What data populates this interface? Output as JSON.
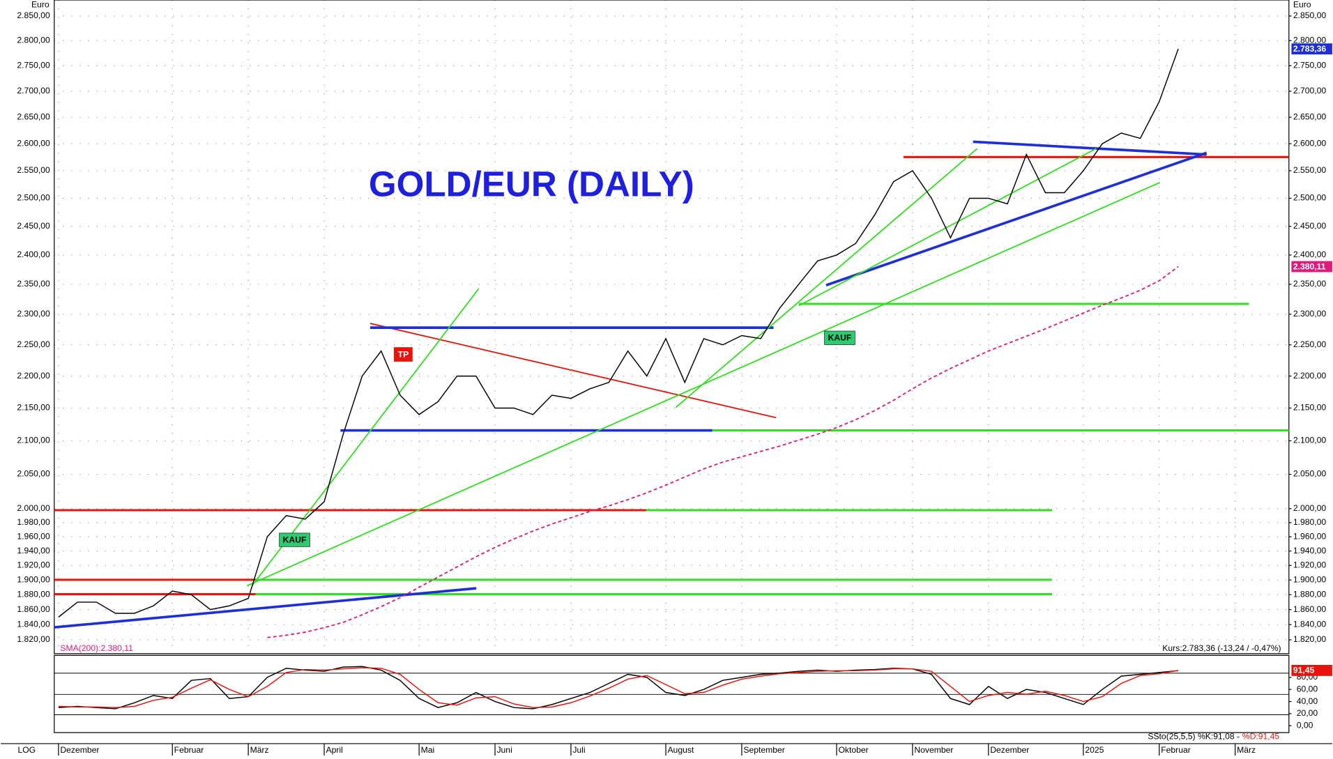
{
  "chart_data": {
    "type": "line",
    "title": "GOLD/EUR (DAILY)",
    "y_label": "Euro",
    "scale_label": "LOG",
    "log_scale": true,
    "grid": true,
    "annotations": [
      "KAUF",
      "TP",
      "KAUF"
    ],
    "categories": [
      "Dezember",
      null,
      null,
      null,
      null,
      null,
      "Februar",
      null,
      null,
      null,
      "März",
      null,
      null,
      null,
      "April",
      null,
      null,
      null,
      null,
      "Mai",
      null,
      null,
      null,
      "Juni",
      null,
      null,
      null,
      "Juli",
      null,
      null,
      null,
      null,
      "August",
      null,
      null,
      null,
      "September",
      null,
      null,
      null,
      null,
      "Oktober",
      null,
      null,
      null,
      "November",
      null,
      null,
      null,
      "Dezember",
      null,
      null,
      null,
      null,
      "2025",
      null,
      null,
      null,
      "Februar",
      null,
      null,
      null,
      "März",
      null,
      null,
      null
    ],
    "ylim": [
      1802,
      2883
    ],
    "yticks": [
      {
        "value": 2850,
        "label": "2.850,00"
      },
      {
        "value": 2800,
        "label": "2.800,00"
      },
      {
        "value": 2750,
        "label": "2.750,00"
      },
      {
        "value": 2700,
        "label": "2.700,00"
      },
      {
        "value": 2650,
        "label": "2.650,00"
      },
      {
        "value": 2600,
        "label": "2.600,00"
      },
      {
        "value": 2550,
        "label": "2.550,00"
      },
      {
        "value": 2500,
        "label": "2.500,00"
      },
      {
        "value": 2450,
        "label": "2.450,00"
      },
      {
        "value": 2400,
        "label": "2.400,00"
      },
      {
        "value": 2350,
        "label": "2.350,00"
      },
      {
        "value": 2300,
        "label": "2.300,00"
      },
      {
        "value": 2250,
        "label": "2.250,00"
      },
      {
        "value": 2200,
        "label": "2.200,00"
      },
      {
        "value": 2150,
        "label": "2.150,00"
      },
      {
        "value": 2100,
        "label": "2.100,00"
      },
      {
        "value": 2050,
        "label": "2.050,00"
      },
      {
        "value": 2000,
        "label": "2.000,00"
      },
      {
        "value": 1980,
        "label": "1.980,00"
      },
      {
        "value": 1960,
        "label": "1.960,00"
      },
      {
        "value": 1940,
        "label": "1.940,00"
      },
      {
        "value": 1920,
        "label": "1.920,00"
      },
      {
        "value": 1900,
        "label": "1.900,00"
      },
      {
        "value": 1880,
        "label": "1.880,00"
      },
      {
        "value": 1860,
        "label": "1.860,00"
      },
      {
        "value": 1840,
        "label": "1.840,00"
      },
      {
        "value": 1820,
        "label": "1.820,00"
      }
    ],
    "y2lim": [
      -10,
      115
    ],
    "y2ticks": [
      {
        "value": 80,
        "label": "80,00"
      },
      {
        "value": 60,
        "label": "60,00"
      },
      {
        "value": 40,
        "label": "40,00"
      },
      {
        "value": 20,
        "label": "20,00"
      },
      {
        "value": 0,
        "label": "0,00"
      }
    ],
    "series": [
      {
        "name": "Kurs:2.783,36 (-13,24 / -0,47%)",
        "color": "#000000",
        "label_color": "#1f2fd8",
        "values": [
          1850,
          1870,
          1870,
          1855,
          1855,
          1865,
          1885,
          1880,
          1860,
          1865,
          1875,
          1960,
          1990,
          1985,
          2010,
          2110,
          2200,
          2240,
          2170,
          2140,
          2160,
          2200,
          2200,
          2150,
          2150,
          2140,
          2170,
          2165,
          2180,
          2190,
          2240,
          2200,
          2260,
          2190,
          2260,
          2250,
          2265,
          2260,
          2310,
          2350,
          2390,
          2400,
          2420,
          2470,
          2530,
          2550,
          2500,
          2430,
          2500,
          2500,
          2490,
          2580,
          2510,
          2510,
          2550,
          2600,
          2620,
          2610,
          2680,
          2783.36,
          null,
          null,
          null,
          null,
          null,
          null
        ],
        "value_labels": [
          null,
          null,
          null,
          null,
          null,
          null,
          null,
          null,
          null,
          null,
          null,
          null,
          null,
          null,
          null,
          null,
          null,
          null,
          null,
          null,
          null,
          null,
          null,
          null,
          null,
          null,
          null,
          null,
          null,
          null,
          null,
          null,
          null,
          null,
          null,
          null,
          null,
          null,
          null,
          null,
          null,
          null,
          null,
          null,
          null,
          null,
          null,
          null,
          null,
          null,
          null,
          null,
          null,
          null,
          null,
          null,
          null,
          null,
          null,
          "2.783,36",
          null,
          null,
          null,
          null,
          null,
          null
        ]
      },
      {
        "name": "SMA(200):2.380,11",
        "color": "#e0197d",
        "dashed": true,
        "label_color": "#e0197d",
        "values": [
          null,
          null,
          null,
          null,
          null,
          null,
          null,
          null,
          null,
          null,
          null,
          1823,
          1826,
          1830,
          1836,
          1843,
          1853,
          1864,
          1876,
          1890,
          1904,
          1918,
          1932,
          1945,
          1957,
          1968,
          1978,
          1987,
          1996,
          2004,
          2013,
          2023,
          2034,
          2046,
          2058,
          2068,
          2076,
          2084,
          2092,
          2101,
          2110,
          2120,
          2132,
          2146,
          2162,
          2180,
          2197,
          2212,
          2226,
          2240,
          2252,
          2264,
          2276,
          2289,
          2302,
          2315,
          2327,
          2340,
          2356,
          2380.11,
          null,
          null,
          null,
          null,
          null,
          null
        ],
        "value_labels": [
          null,
          null,
          null,
          null,
          null,
          null,
          null,
          null,
          null,
          null,
          null,
          null,
          null,
          null,
          null,
          null,
          null,
          null,
          null,
          null,
          null,
          null,
          null,
          null,
          null,
          null,
          null,
          null,
          null,
          null,
          null,
          null,
          null,
          null,
          null,
          null,
          null,
          null,
          null,
          null,
          null,
          null,
          null,
          null,
          null,
          null,
          null,
          null,
          null,
          null,
          null,
          null,
          null,
          null,
          null,
          null,
          null,
          null,
          null,
          "2.380,11",
          null,
          null,
          null,
          null,
          null,
          null
        ]
      },
      {
        "name": "SSto(25,5,5) %K:91,08 -",
        "color": "#000000",
        "axis": "y2",
        "values": [
          30,
          32,
          30,
          28,
          38,
          50,
          45,
          75,
          78,
          45,
          48,
          80,
          95,
          92,
          90,
          97,
          98,
          92,
          75,
          45,
          30,
          38,
          55,
          40,
          30,
          28,
          35,
          45,
          55,
          70,
          85,
          80,
          55,
          50,
          60,
          75,
          80,
          85,
          87,
          90,
          92,
          90,
          92,
          93,
          95,
          94,
          85,
          45,
          35,
          65,
          45,
          60,
          55,
          45,
          35,
          60,
          82,
          85,
          88,
          91.08,
          null,
          null,
          null,
          null,
          null,
          null
        ]
      },
      {
        "name": "%D:91,45",
        "color": "#e8140c",
        "axis": "y2",
        "label_color": "#e8140c",
        "values": [
          32,
          31,
          31,
          30,
          32,
          42,
          47,
          62,
          76,
          60,
          48,
          65,
          88,
          93,
          92,
          94,
          96,
          95,
          85,
          60,
          38,
          34,
          46,
          48,
          36,
          30,
          31,
          38,
          49,
          62,
          77,
          83,
          68,
          53,
          55,
          67,
          77,
          82,
          86,
          88,
          90,
          91,
          91,
          92,
          94,
          94,
          90,
          65,
          40,
          50,
          55,
          52,
          57,
          50,
          40,
          48,
          70,
          83,
          86,
          91.45,
          null,
          null,
          null,
          null,
          null,
          null
        ],
        "value_labels": [
          null,
          null,
          null,
          null,
          null,
          null,
          null,
          null,
          null,
          null,
          null,
          null,
          null,
          null,
          null,
          null,
          null,
          null,
          null,
          null,
          null,
          null,
          null,
          null,
          null,
          null,
          null,
          null,
          null,
          null,
          null,
          null,
          null,
          null,
          null,
          null,
          null,
          null,
          null,
          null,
          null,
          null,
          null,
          null,
          null,
          null,
          null,
          null,
          null,
          null,
          null,
          null,
          null,
          null,
          null,
          null,
          null,
          null,
          null,
          "91,45",
          null,
          null,
          null,
          null,
          null,
          null
        ]
      }
    ]
  }
}
